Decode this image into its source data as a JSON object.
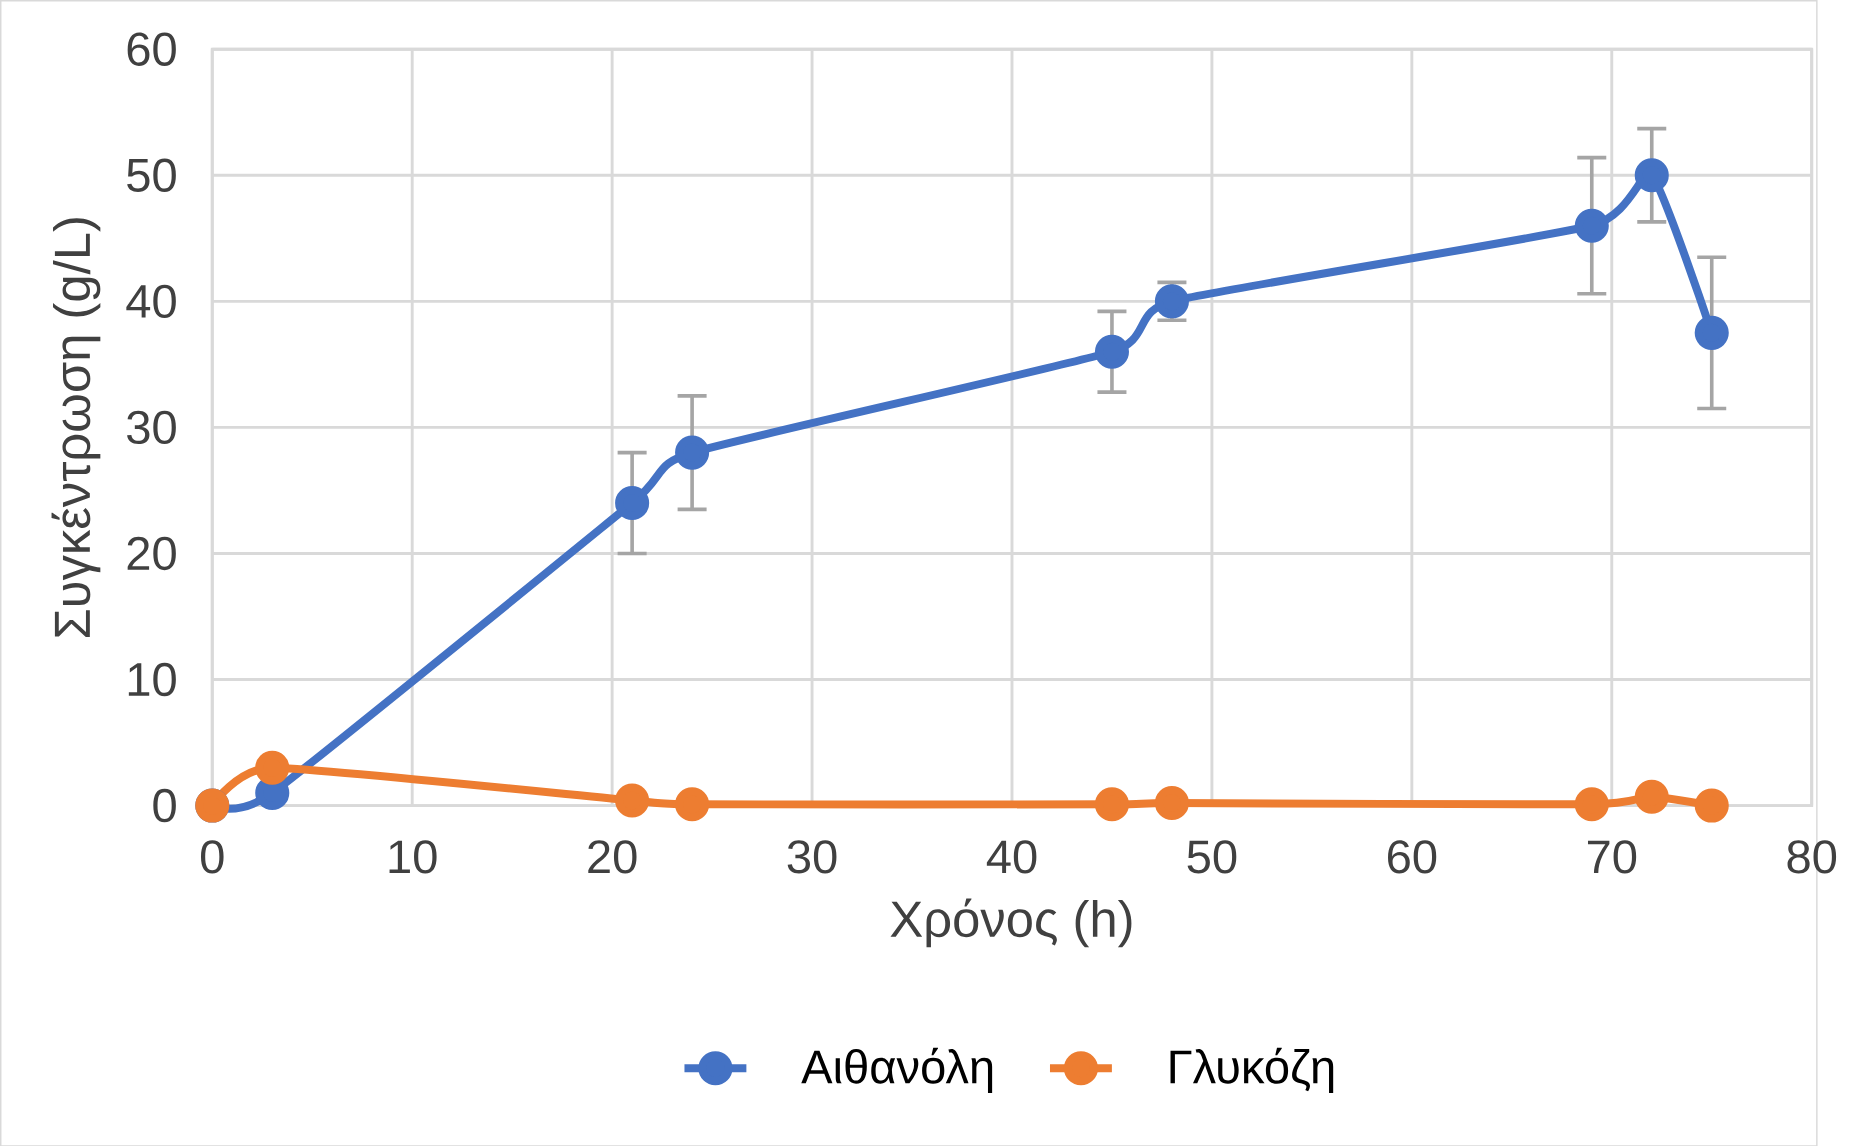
{
  "chart_data": {
    "type": "line",
    "xlabel": "Χρόνος (h)",
    "ylabel": "Συγκέντρωση (g/L)",
    "x": [
      0,
      3,
      21,
      24,
      45,
      48,
      69,
      72,
      75
    ],
    "series": [
      {
        "name": "Αιθανόλη",
        "color": "#4472c4",
        "values": [
          0,
          1,
          24,
          28,
          36,
          40,
          46,
          50,
          37.5
        ],
        "errors": [
          null,
          null,
          4,
          4.5,
          3.2,
          1.5,
          5.4,
          3.7,
          6
        ]
      },
      {
        "name": "Γλυκόζη",
        "color": "#ed7d31",
        "values": [
          0,
          3,
          0.4,
          0.1,
          0.1,
          0.2,
          0.1,
          0.7,
          0
        ]
      }
    ],
    "xlim": [
      0,
      80
    ],
    "ylim": [
      0,
      60
    ],
    "xticks": [
      0,
      10,
      20,
      30,
      40,
      50,
      60,
      70,
      80
    ],
    "yticks": [
      0,
      10,
      20,
      30,
      40,
      50,
      60
    ],
    "grid": true,
    "legend": "bottom",
    "marker": "circle",
    "line_style": "solid"
  }
}
